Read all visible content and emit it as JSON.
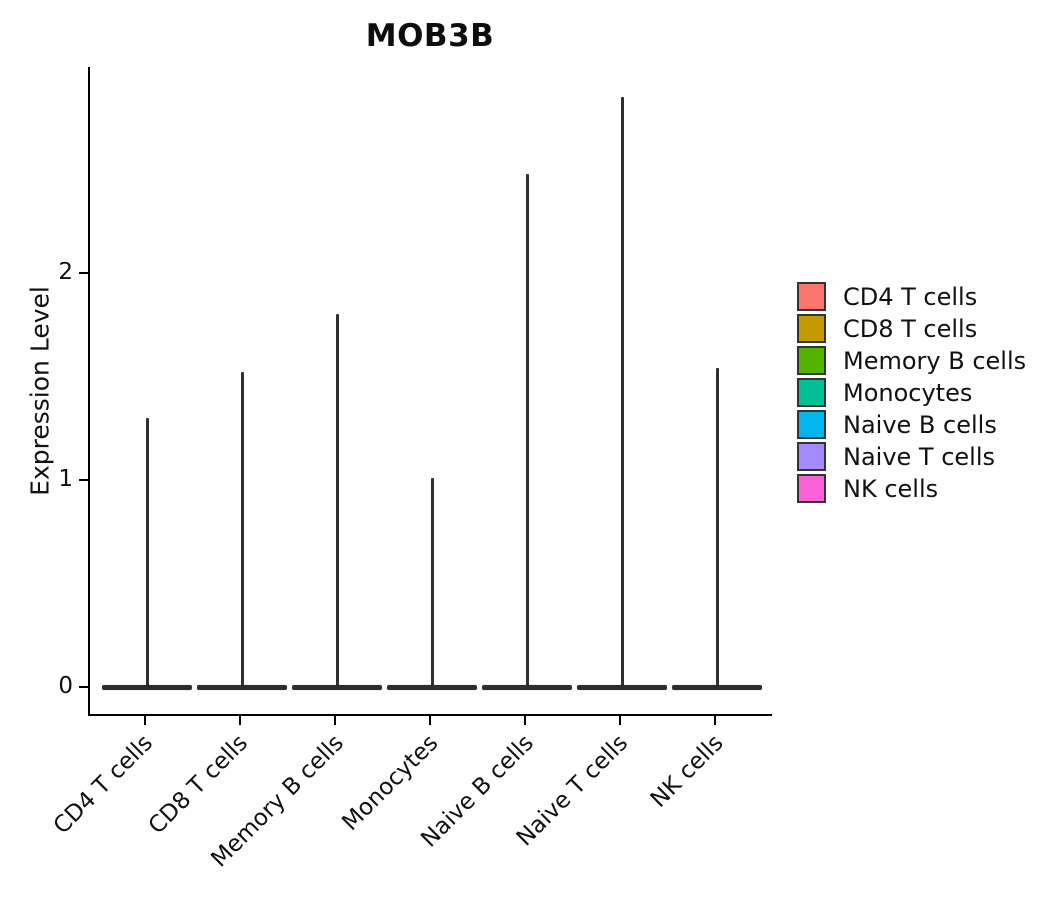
{
  "chart_data": {
    "type": "violin",
    "title": "MOB3B",
    "ylabel": "Expression Level",
    "xlabel": "",
    "categories": [
      "CD4 T cells",
      "CD8 T cells",
      "Memory B cells",
      "Monocytes",
      "Naive B cells",
      "Naive T cells",
      "NK cells"
    ],
    "series": [
      {
        "name": "CD4 T cells",
        "color": "#F8766D",
        "max_expression": 1.3
      },
      {
        "name": "CD8 T cells",
        "color": "#C49A00",
        "max_expression": 1.52
      },
      {
        "name": "Memory B cells",
        "color": "#53B400",
        "max_expression": 1.8
      },
      {
        "name": "Monocytes",
        "color": "#00C094",
        "max_expression": 1.01
      },
      {
        "name": "Naive B cells",
        "color": "#00B6EB",
        "max_expression": 2.48
      },
      {
        "name": "Naive T cells",
        "color": "#A58AFF",
        "max_expression": 2.85
      },
      {
        "name": "NK cells",
        "color": "#FB61D7",
        "max_expression": 1.54
      }
    ],
    "shape_note": "violins are collapsed to thin vertical spikes; density bulk sits flat at expression 0",
    "y_ticks": [
      "0",
      "1",
      "2"
    ],
    "ylim": [
      0,
      3.0
    ],
    "grid": false,
    "legend_position": "right",
    "outline_color": "#2f2f2f"
  }
}
